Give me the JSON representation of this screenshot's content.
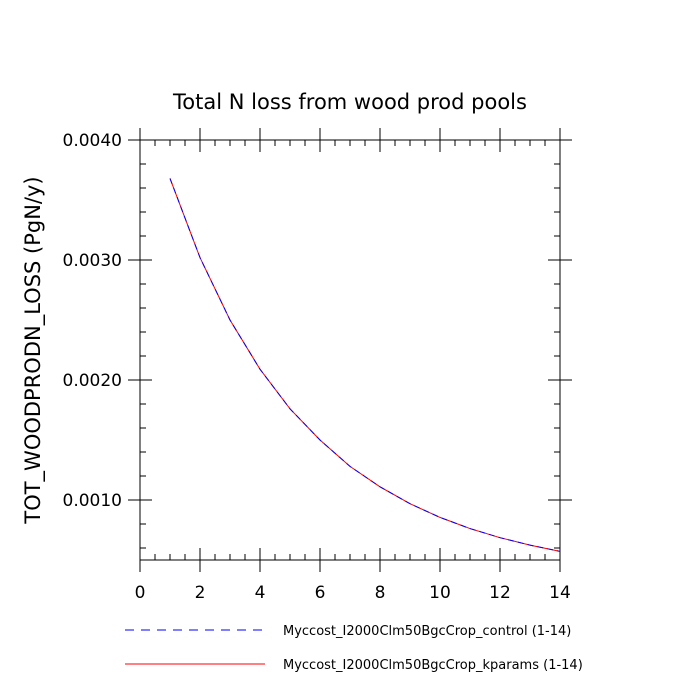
{
  "chart_data": {
    "type": "line",
    "title": "Total N loss from wood prod pools",
    "xlabel": "",
    "ylabel": "TOT_WOODPRODN_LOSS  (PgN/y)",
    "xlim": [
      0,
      14
    ],
    "ylim": [
      0.0005,
      0.004
    ],
    "x_ticks": [
      0,
      2,
      4,
      6,
      8,
      10,
      12,
      14
    ],
    "x_tick_labels": [
      "0",
      "2",
      "4",
      "6",
      "8",
      "10",
      "12",
      "14"
    ],
    "y_ticks": [
      0.001,
      0.002,
      0.003,
      0.004
    ],
    "y_tick_labels": [
      "0.0010",
      "0.0020",
      "0.0030",
      "0.0040"
    ],
    "grid": false,
    "legend_position": "bottom",
    "x": [
      1,
      2,
      3,
      4,
      5,
      6,
      7,
      8,
      9,
      10,
      11,
      12,
      13,
      14
    ],
    "series": [
      {
        "name": "Myccost_I2000Clm50BgcCrop_control (1-14)",
        "color": "#0000ff",
        "dash": "dashed",
        "values": [
          0.00368,
          0.00302,
          0.0025,
          0.00209,
          0.00176,
          0.0015,
          0.00128,
          0.00111,
          0.000969,
          0.000855,
          0.000762,
          0.000686,
          0.000624,
          0.000572
        ]
      },
      {
        "name": "Myccost_I2000Clm50BgcCrop_kparams (1-14)",
        "color": "#ff0000",
        "dash": "solid",
        "values": [
          0.00368,
          0.00302,
          0.0025,
          0.00209,
          0.00176,
          0.0015,
          0.00128,
          0.00111,
          0.000969,
          0.000855,
          0.000762,
          0.000686,
          0.000624,
          0.000572
        ]
      }
    ]
  }
}
